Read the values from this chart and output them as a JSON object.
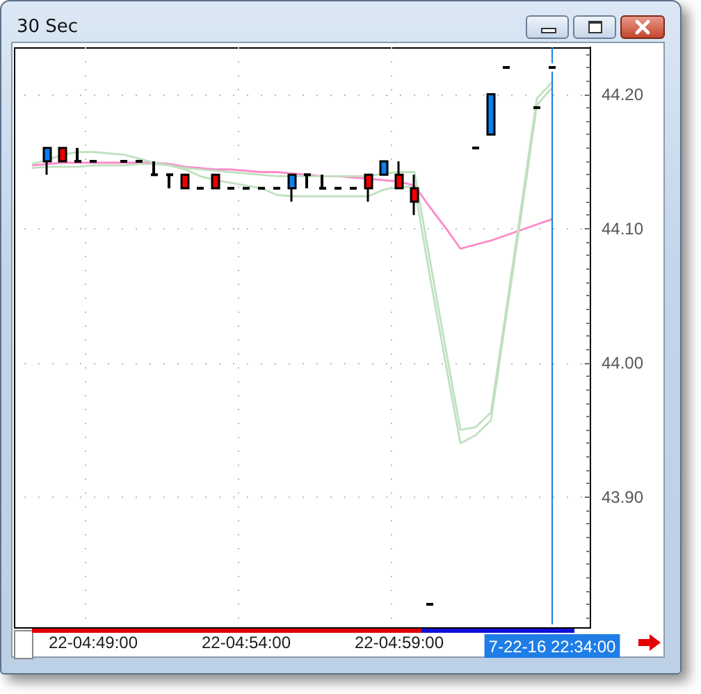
{
  "chart_data": {
    "type": "candlestick",
    "title": "30 Sec",
    "categories": [
      null,
      null,
      null,
      null,
      "22-04:49:00",
      null,
      null,
      null,
      null,
      null,
      null,
      null,
      null,
      null,
      "22-04:54:00",
      null,
      null,
      null,
      null,
      null,
      null,
      null,
      null,
      null,
      "22-04:59:00",
      null,
      null,
      null,
      null,
      null,
      null,
      null,
      null,
      null,
      "7-22-16 22:34:00",
      null,
      null
    ],
    "ohlc": [
      null,
      [
        44.15,
        44.16,
        44.14,
        44.16
      ],
      [
        44.16,
        44.16,
        44.15,
        44.15
      ],
      [
        44.15,
        44.16,
        44.15,
        44.15
      ],
      [
        44.15,
        44.15,
        44.15,
        44.15
      ],
      null,
      [
        44.15,
        44.15,
        44.15,
        44.15
      ],
      [
        44.15,
        44.15,
        44.15,
        44.15
      ],
      [
        44.14,
        44.15,
        44.14,
        44.14
      ],
      [
        44.14,
        44.14,
        44.13,
        44.14
      ],
      [
        44.14,
        44.14,
        44.13,
        44.13
      ],
      [
        44.13,
        44.13,
        44.13,
        44.13
      ],
      [
        44.14,
        44.14,
        44.13,
        44.13
      ],
      [
        44.13,
        44.13,
        44.13,
        44.13
      ],
      [
        44.13,
        44.13,
        44.13,
        44.13
      ],
      [
        44.13,
        44.13,
        44.13,
        44.13
      ],
      [
        44.13,
        44.13,
        44.13,
        44.13
      ],
      [
        44.13,
        44.14,
        44.12,
        44.14
      ],
      [
        44.14,
        44.14,
        44.13,
        44.14
      ],
      [
        44.13,
        44.14,
        44.13,
        44.13
      ],
      [
        44.13,
        44.13,
        44.13,
        44.13
      ],
      [
        44.13,
        44.13,
        44.13,
        44.13
      ],
      [
        44.14,
        44.14,
        44.12,
        44.13
      ],
      [
        44.14,
        44.15,
        44.14,
        44.15
      ],
      [
        44.14,
        44.15,
        44.13,
        44.13
      ],
      [
        44.13,
        44.14,
        44.11,
        44.12
      ],
      [
        43.82,
        43.82,
        43.82,
        43.82
      ],
      null,
      null,
      [
        44.16,
        44.16,
        44.16,
        44.16
      ],
      [
        44.17,
        44.2,
        44.17,
        44.2
      ],
      [
        44.22,
        44.22,
        44.22,
        44.22
      ],
      null,
      [
        44.19,
        44.19,
        44.19,
        44.19
      ],
      [
        44.22,
        44.22,
        44.22,
        44.22
      ],
      null,
      null
    ],
    "colors": [
      null,
      "#0a7ff0",
      "#f00000",
      "#000000",
      "#000000",
      null,
      "#000000",
      "#000000",
      "#000000",
      "#000000",
      "#f00000",
      "#000000",
      "#f00000",
      "#000000",
      "#000000",
      "#000000",
      "#000000",
      "#0a7ff0",
      "#000000",
      "#000000",
      "#000000",
      "#000000",
      "#f00000",
      "#0a7ff0",
      "#f00000",
      "#f00000",
      "#000000",
      null,
      null,
      "#000000",
      "#0a7ff0",
      "#000000",
      null,
      "#000000",
      "#000000",
      null,
      null
    ],
    "series": [
      {
        "type": "line",
        "color": "#ff88c8",
        "values": [
          44.147,
          44.148,
          44.149,
          44.149,
          44.149,
          44.149,
          44.149,
          44.149,
          44.149,
          44.148,
          44.146,
          44.145,
          44.144,
          44.144,
          44.143,
          44.142,
          44.142,
          44.141,
          44.14,
          44.139,
          44.139,
          44.138,
          44.137,
          44.136,
          44.135,
          44.132,
          44.116,
          44.101,
          44.085,
          44.088,
          44.091,
          44.095,
          44.099,
          44.103,
          44.107,
          null,
          null
        ]
      },
      {
        "type": "line",
        "color": "#bfe0bf",
        "values": [
          44.148,
          44.151,
          44.155,
          44.157,
          44.157,
          44.156,
          44.155,
          44.152,
          44.149,
          44.147,
          44.145,
          44.144,
          44.143,
          44.142,
          44.141,
          44.14,
          44.139,
          44.139,
          44.139,
          44.139,
          44.139,
          44.139,
          44.139,
          44.141,
          44.142,
          44.142,
          44.077,
          44.013,
          43.95,
          43.952,
          43.963,
          44.04,
          44.118,
          44.197,
          44.209,
          null,
          null
        ]
      },
      {
        "type": "line",
        "color": "#bfe0bf",
        "values": [
          44.145,
          44.146,
          44.146,
          44.146,
          44.147,
          44.147,
          44.147,
          44.148,
          44.148,
          44.147,
          44.144,
          44.139,
          44.136,
          44.134,
          44.132,
          44.13,
          44.125,
          44.124,
          44.124,
          44.124,
          44.124,
          44.124,
          44.124,
          44.129,
          44.131,
          44.131,
          44.065,
          44.002,
          43.94,
          43.946,
          43.957,
          44.035,
          44.112,
          44.192,
          44.205,
          null,
          null
        ]
      }
    ],
    "ylim": [
      43.805,
      44.235
    ],
    "yticks": [
      {
        "value": 43.9,
        "label": "43.90"
      },
      {
        "value": 44.0,
        "label": "44.00"
      },
      {
        "value": 44.1,
        "label": "44.10"
      },
      {
        "value": 44.2,
        "label": "44.20"
      }
    ],
    "grid": true,
    "marker": "none",
    "ref_lines": [
      {
        "axis": "x",
        "value": "7-22-16 22:34:00",
        "color": "#1f7de6"
      }
    ]
  }
}
